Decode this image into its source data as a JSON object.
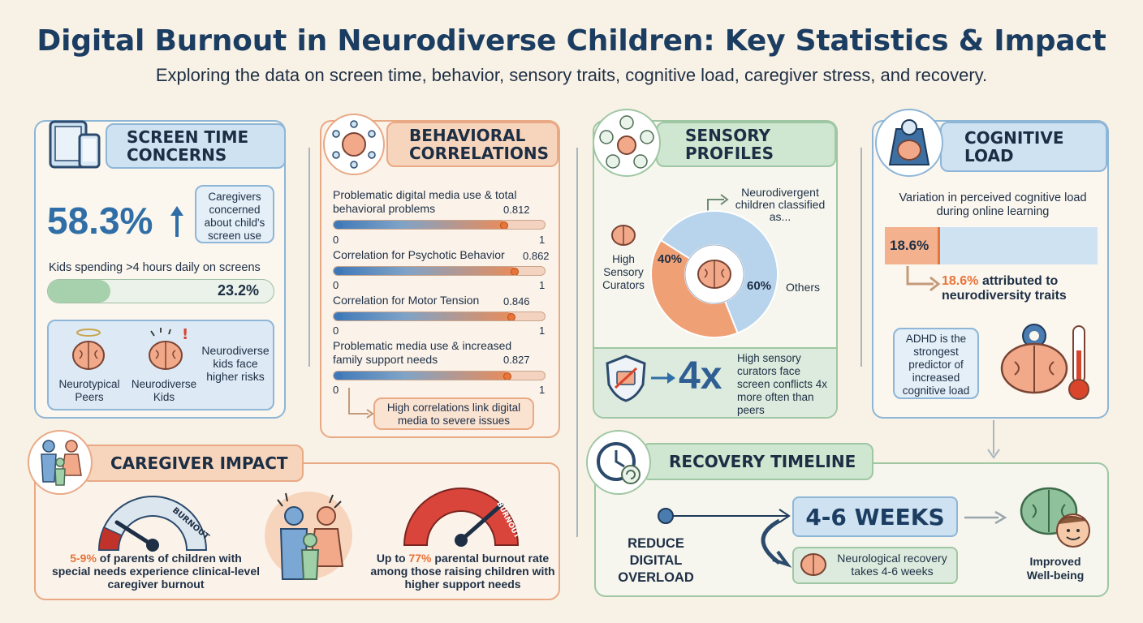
{
  "title": "Digital Burnout in Neurodiverse Children: Key Statistics & Impact",
  "subtitle": "Exploring the data on screen time, behavior, sensory traits, cognitive load, caregiver stress, and recovery.",
  "screen_time": {
    "header": "SCREEN TIME CONCERNS",
    "stat": "58.3%",
    "stat_note": "Caregivers concerned about child's screen use",
    "bar_label": "Kids spending >4 hours daily on screens",
    "bar_value": "23.2%",
    "bar_fraction": 0.232,
    "typical_label": "Neurotypical Peers",
    "diverse_label": "Neurodiverse Kids",
    "risk_note": "Neurodiverse kids face higher risks"
  },
  "behavioral": {
    "header": "BEHAVIORAL CORRELATIONS",
    "items": [
      {
        "label": "Problematic digital media use & total behavioral problems",
        "value": "0.812",
        "v": 0.812
      },
      {
        "label": "Correlation for Psychotic Behavior",
        "value": "0.862",
        "v": 0.862
      },
      {
        "label": "Correlation for Motor Tension",
        "value": "0.846",
        "v": 0.846
      },
      {
        "label": "Problematic media use & increased family support needs",
        "value": "0.827",
        "v": 0.827
      }
    ],
    "axis_min": "0",
    "axis_max": "1",
    "note": "High correlations link digital media to severe issues"
  },
  "sensory": {
    "header": "SENSORY PROFILES",
    "donut_caption": "Neurodivergent children classified as...",
    "left_label": "High Sensory Curators",
    "pct_a": "40%",
    "pct_b": "60%",
    "frac_a": 0.4,
    "others_label": "Others",
    "multiplier": "4x",
    "multiplier_note": "High sensory curators face screen conflicts 4x more often than peers",
    "color_a": "#f0a075",
    "color_b": "#b8d3ec"
  },
  "cognitive": {
    "header": "COGNITIVE LOAD",
    "caption": "Variation in perceived cognitive load during online learning",
    "bar_value": "18.6%",
    "bar_fraction": 0.186,
    "attr_value": "18.6%",
    "attr_text": "attributed to neurodiversity traits",
    "adhd_note": "ADHD is the strongest predictor of increased cognitive load"
  },
  "caregiver": {
    "header": "CAREGIVER IMPACT",
    "gauge_word": "BURNOUT",
    "stat1_value": "5-9%",
    "stat1_text": "of parents of children with special needs experience clinical-level caregiver burnout",
    "gauge_word_2": "BURNOUT",
    "stat2_prefix": "Up to",
    "stat2_value": "77%",
    "stat2_text": "parental burnout rate among those raising children with higher support needs"
  },
  "recovery": {
    "header": "RECOVERY TIMELINE",
    "start_label": "REDUCE DIGITAL OVERLOAD",
    "duration": "4-6 WEEKS",
    "recovery_note": "Neurological recovery takes 4-6 weeks",
    "end_label": "Improved Well-being"
  }
}
